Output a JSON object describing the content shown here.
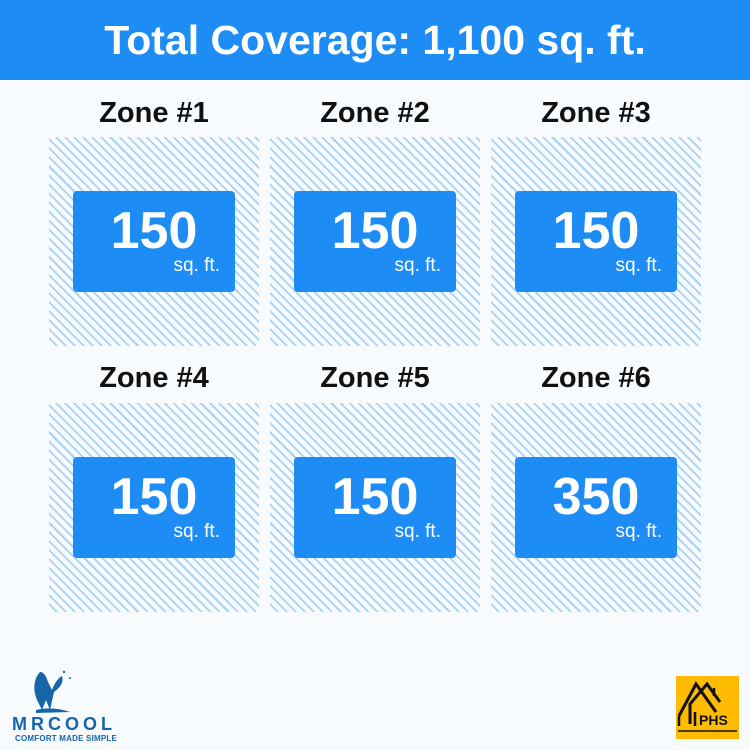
{
  "header": {
    "title": "Total Coverage: 1,100 sq. ft."
  },
  "zones": [
    {
      "label": "Zone #1",
      "value": "150",
      "unit": "sq. ft."
    },
    {
      "label": "Zone #2",
      "value": "150",
      "unit": "sq. ft."
    },
    {
      "label": "Zone #3",
      "value": "150",
      "unit": "sq. ft."
    },
    {
      "label": "Zone #4",
      "value": "150",
      "unit": "sq. ft."
    },
    {
      "label": "Zone #5",
      "value": "150",
      "unit": "sq. ft."
    },
    {
      "label": "Zone #6",
      "value": "350",
      "unit": "sq. ft."
    }
  ],
  "logos": {
    "left": "MRCOOL",
    "left_tagline": "COMFORT MADE SIMPLE",
    "right": "PHS"
  },
  "colors": {
    "accent": "#1e8cf5",
    "stripe": "#a9d0f5",
    "phs": "#ffbb00",
    "mrcool": "#1565a8"
  }
}
